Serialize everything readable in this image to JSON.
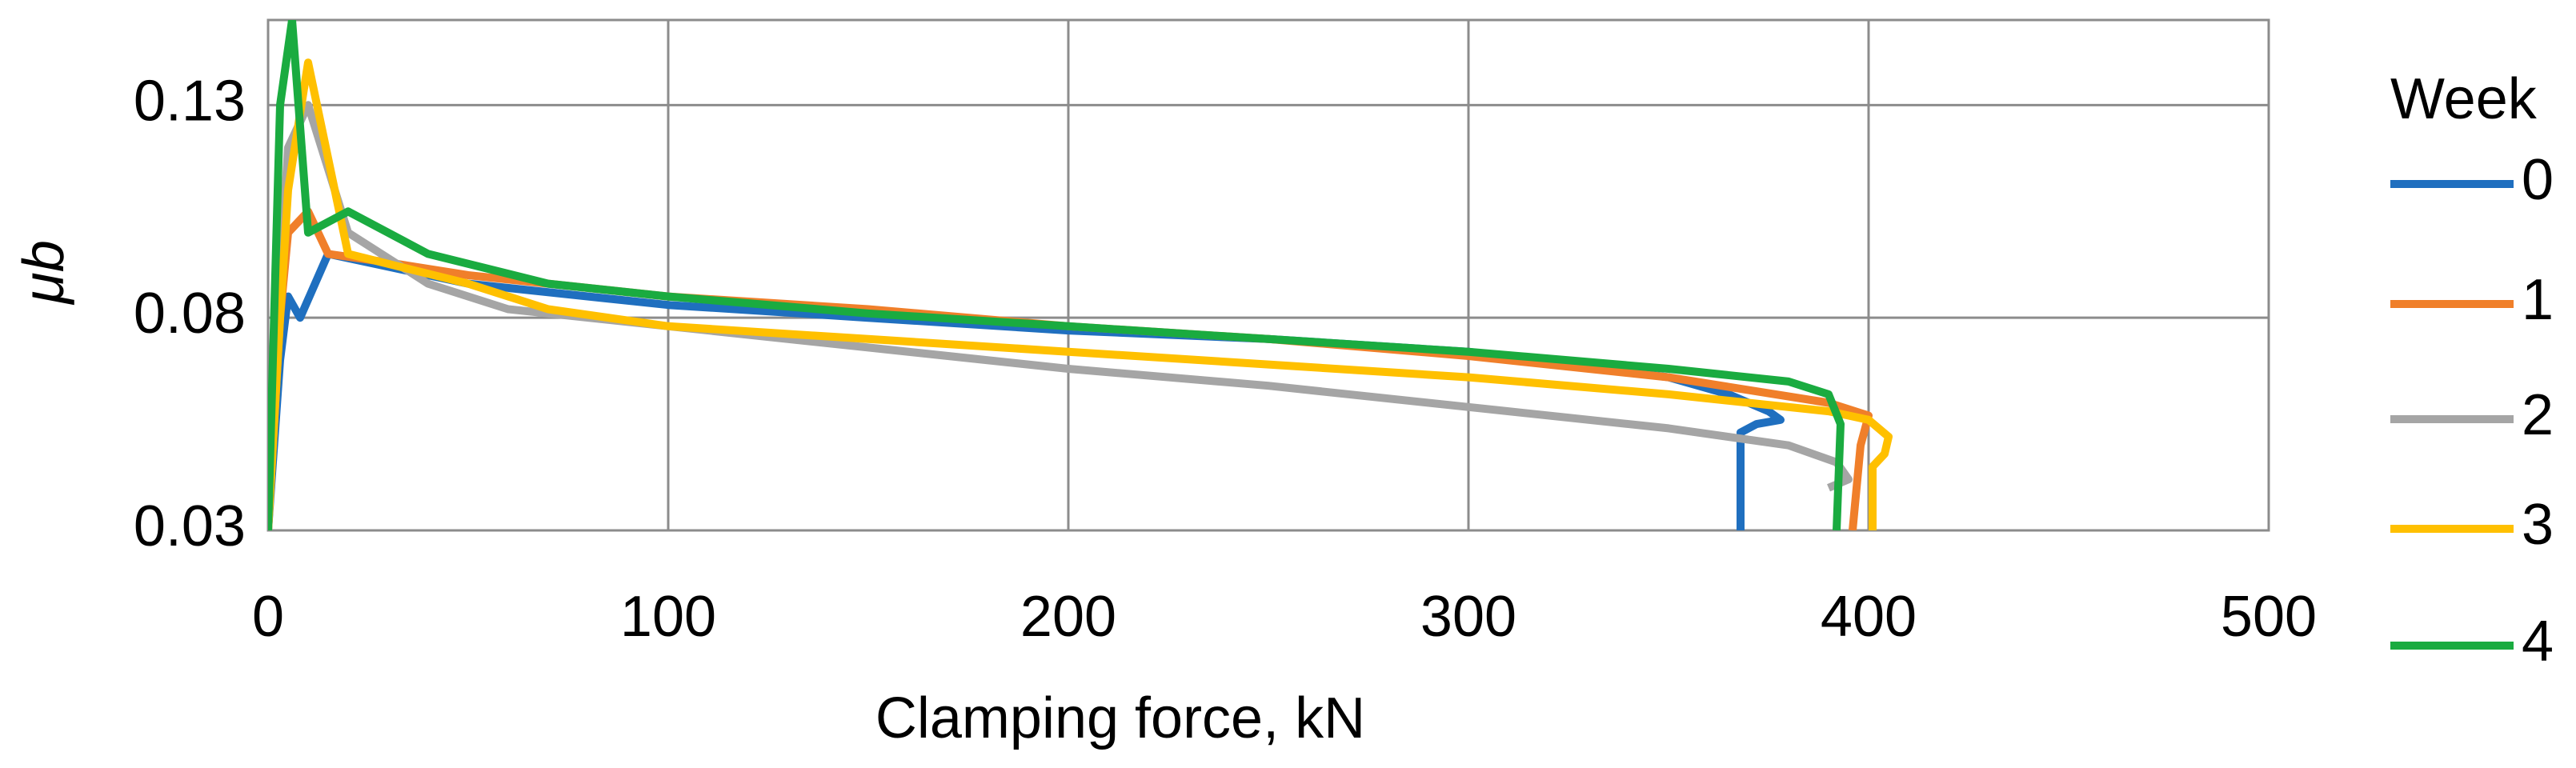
{
  "chart_data": {
    "type": "line",
    "x_label": "Clamping force, kN",
    "y_label": "μb",
    "legend_title": "Week",
    "legend": "right",
    "grid": true,
    "xlim": [
      0,
      500
    ],
    "xticks": [
      0,
      100,
      200,
      300,
      400,
      500
    ],
    "ylim": [
      0.03,
      0.15
    ],
    "yticks": [
      0.03,
      0.08,
      0.13
    ],
    "series": [
      {
        "name": "0",
        "color": "#1f6fbf",
        "x": [
          0,
          3,
          5,
          8,
          15,
          30,
          50,
          100,
          150,
          200,
          250,
          300,
          350,
          365,
          375,
          378,
          372,
          368,
          368
        ],
        "values": [
          0.03,
          0.07,
          0.085,
          0.08,
          0.095,
          0.092,
          0.088,
          0.083,
          0.08,
          0.077,
          0.075,
          0.072,
          0.066,
          0.062,
          0.058,
          0.056,
          0.055,
          0.053,
          0.03
        ]
      },
      {
        "name": "1",
        "color": "#f07f2a",
        "x": [
          0,
          3,
          5,
          10,
          15,
          30,
          50,
          100,
          150,
          200,
          250,
          300,
          350,
          390,
          400,
          398,
          396
        ],
        "values": [
          0.03,
          0.08,
          0.1,
          0.105,
          0.095,
          0.093,
          0.09,
          0.085,
          0.082,
          0.078,
          0.075,
          0.071,
          0.066,
          0.06,
          0.057,
          0.05,
          0.03
        ]
      },
      {
        "name": "2",
        "color": "#a5a5a5",
        "x": [
          0,
          3,
          5,
          10,
          20,
          40,
          60,
          100,
          150,
          200,
          250,
          300,
          350,
          380,
          392,
          395,
          390
        ],
        "values": [
          0.03,
          0.09,
          0.12,
          0.13,
          0.1,
          0.088,
          0.082,
          0.078,
          0.073,
          0.068,
          0.064,
          0.059,
          0.054,
          0.05,
          0.046,
          0.042,
          0.04
        ]
      },
      {
        "name": "3",
        "color": "#ffc000",
        "x": [
          0,
          3,
          5,
          10,
          20,
          50,
          70,
          100,
          150,
          200,
          250,
          300,
          350,
          390,
          400,
          405,
          404,
          401,
          401
        ],
        "values": [
          0.03,
          0.08,
          0.11,
          0.14,
          0.095,
          0.088,
          0.082,
          0.078,
          0.075,
          0.072,
          0.069,
          0.066,
          0.062,
          0.058,
          0.056,
          0.052,
          0.048,
          0.045,
          0.03
        ]
      },
      {
        "name": "4",
        "color": "#1aab40",
        "x": [
          0,
          3,
          6,
          10,
          20,
          40,
          70,
          100,
          150,
          200,
          250,
          300,
          350,
          380,
          390,
          393,
          392
        ],
        "values": [
          0.03,
          0.13,
          0.15,
          0.1,
          0.105,
          0.095,
          0.088,
          0.085,
          0.081,
          0.078,
          0.075,
          0.072,
          0.068,
          0.065,
          0.062,
          0.055,
          0.03
        ]
      }
    ]
  }
}
